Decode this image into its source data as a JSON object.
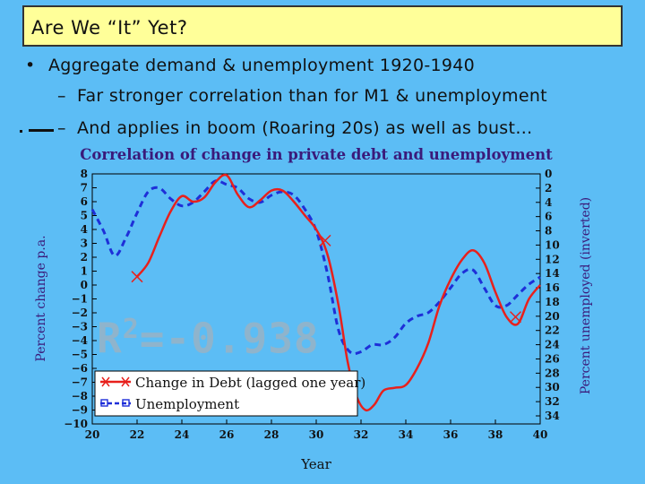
{
  "slide": {
    "title": "Are We “It” Yet?",
    "bullet1": "Aggregate demand & unemployment 1920-1940",
    "bullet2": "Far stronger correlation than for M1 & unemployment",
    "bullet3": "And applies in boom (Roaring 20s) as well as bust…",
    "bullet_marker": "•",
    "sub_marker": "–"
  },
  "r2": {
    "base": "R",
    "exp": "2",
    "rest": "=-0.938"
  },
  "colors": {
    "background": "#5cbdf5",
    "title_bg": "#ffff99",
    "debt": "#e8201c",
    "unemployment": "#1e2fd8",
    "r2_text": "#8fb4cc"
  },
  "chart_data": {
    "type": "line",
    "title": "Correlation of change in private debt and unemployment",
    "xlabel": "Year",
    "ylabel": "Percent change p.a.",
    "y2label": "Percent unemployed (inverted)",
    "xlim": [
      20,
      40
    ],
    "ylim": [
      -10,
      8
    ],
    "y2lim": [
      0,
      34
    ],
    "y2_inverted": true,
    "x_ticks": [
      "20",
      "22",
      "24",
      "26",
      "28",
      "30",
      "32",
      "34",
      "36",
      "38",
      "40"
    ],
    "y_ticks": [
      "8",
      "7",
      "6",
      "5",
      "4",
      "3",
      "2",
      "1",
      "0",
      "−1",
      "−2",
      "−3",
      "−4",
      "−5",
      "−6",
      "−7",
      "−8",
      "−9",
      "−10"
    ],
    "y2_ticks": [
      "0",
      "2",
      "4",
      "6",
      "8",
      "10",
      "12",
      "14",
      "16",
      "18",
      "20",
      "22",
      "24",
      "26",
      "28",
      "30",
      "32",
      "34"
    ],
    "grid": false,
    "legend_position": "bottom-left",
    "series": [
      {
        "name": "Change in Debt (lagged one year)",
        "axis": "left",
        "marker": "x",
        "marker_points": [
          [
            22,
            0.6
          ],
          [
            30.4,
            3.2
          ],
          [
            38.9,
            -2.3
          ]
        ],
        "x": [
          22,
          22.5,
          23,
          23.5,
          24,
          24.5,
          25,
          25.5,
          26,
          26.5,
          27,
          27.5,
          28,
          28.5,
          29,
          29.5,
          30,
          30.5,
          31,
          31.4,
          31.8,
          32.2,
          32.6,
          33,
          33.5,
          34,
          34.5,
          35,
          35.5,
          36,
          36.5,
          37,
          37.5,
          38,
          38.5,
          39,
          39.5,
          40
        ],
        "y": [
          0.6,
          1.6,
          3.5,
          5.3,
          6.4,
          6.0,
          6.3,
          7.4,
          7.9,
          6.5,
          5.6,
          6.1,
          6.8,
          6.8,
          6.0,
          5.0,
          4.0,
          2.2,
          -1.5,
          -5.5,
          -8.0,
          -9.0,
          -8.6,
          -7.6,
          -7.4,
          -7.2,
          -6.0,
          -4.2,
          -1.5,
          0.4,
          1.8,
          2.5,
          1.6,
          -0.5,
          -2.3,
          -2.8,
          -1.0,
          0.0
        ]
      },
      {
        "name": "Unemployment",
        "axis": "right",
        "marker": "square",
        "x": [
          20,
          20.5,
          21,
          21.5,
          22,
          22.5,
          23,
          23.5,
          24,
          24.5,
          25,
          25.5,
          26,
          26.5,
          27,
          27.5,
          28,
          28.5,
          29,
          29.5,
          30,
          30.5,
          31,
          31.5,
          32,
          32.5,
          33,
          33.5,
          34,
          34.5,
          35,
          35.5,
          36,
          36.5,
          37,
          37.5,
          38,
          38.5,
          39,
          39.5,
          40
        ],
        "y": [
          5,
          8,
          11.5,
          9,
          5.5,
          2.5,
          2,
          3.5,
          4.5,
          4,
          2.5,
          1,
          1.5,
          2,
          3.5,
          4,
          3,
          2.5,
          3,
          5,
          8,
          14,
          22,
          25,
          25,
          24,
          24,
          23,
          21,
          20,
          19.5,
          18,
          16,
          14,
          13.5,
          16,
          18.5,
          18.5,
          17,
          15.5,
          14.5
        ]
      }
    ]
  }
}
